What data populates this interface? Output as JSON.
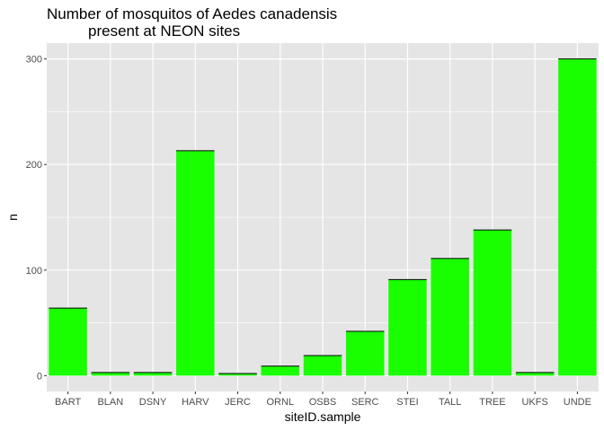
{
  "chart_data": {
    "type": "bar",
    "title_lines": [
      "Number of mosquitos of Aedes canadensis",
      "present at NEON sites"
    ],
    "xlabel": "siteID.sample",
    "ylabel": "n",
    "categories": [
      "BART",
      "BLAN",
      "DSNY",
      "HARV",
      "JERC",
      "ORNL",
      "OSBS",
      "SERC",
      "STEI",
      "TALL",
      "TREE",
      "UKFS",
      "UNDE"
    ],
    "values": [
      64,
      3,
      3,
      213,
      2,
      9,
      19,
      42,
      91,
      111,
      138,
      3,
      300
    ],
    "yticks": [
      0,
      100,
      200,
      300
    ],
    "ylim": [
      -15,
      315
    ],
    "grid": true,
    "legend": "none",
    "bar_color": "#1aff00",
    "bar_top_line_color": "#000000",
    "panel_background": "#e5e5e5",
    "grid_color": "#ffffff"
  }
}
